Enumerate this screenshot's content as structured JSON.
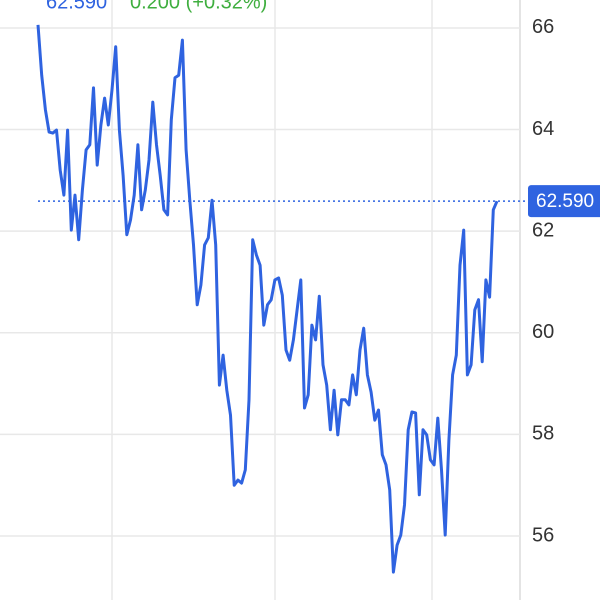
{
  "chart_data": {
    "type": "line",
    "price": "62.590",
    "change": "0.200 (+0.32%)",
    "color": "#2f63e0",
    "ylim": [
      54.74,
      66.55
    ],
    "yticks": [
      56,
      58,
      60,
      62,
      64,
      66
    ],
    "grid": true,
    "price_line": {
      "value": 62.59,
      "label": "62.590"
    },
    "values": [
      66.06,
      65.07,
      64.39,
      63.95,
      63.93,
      63.99,
      63.2,
      62.71,
      63.99,
      62.02,
      62.71,
      61.83,
      62.81,
      63.6,
      63.7,
      64.82,
      63.3,
      64.09,
      64.62,
      64.09,
      64.78,
      65.63,
      63.99,
      63.1,
      61.93,
      62.22,
      62.71,
      63.7,
      62.42,
      62.81,
      63.4,
      64.54,
      63.7,
      63.1,
      62.42,
      62.32,
      64.19,
      65.02,
      65.07,
      65.76,
      63.6,
      62.61,
      61.73,
      60.55,
      60.94,
      61.73,
      61.87,
      62.61,
      61.73,
      58.97,
      59.56,
      58.87,
      58.38,
      57.0,
      57.1,
      57.04,
      57.3,
      58.68,
      61.83,
      61.53,
      61.33,
      60.15,
      60.55,
      60.65,
      61.04,
      61.08,
      60.74,
      59.66,
      59.46,
      59.86,
      60.45,
      61.04,
      58.52,
      58.78,
      60.15,
      59.86,
      60.72,
      59.37,
      58.97,
      58.09,
      58.87,
      57.99,
      58.68,
      58.68,
      58.58,
      59.17,
      58.78,
      59.66,
      60.09,
      59.17,
      58.83,
      58.28,
      58.48,
      57.6,
      57.4,
      56.91,
      55.29,
      55.82,
      56.02,
      56.61,
      58.09,
      58.44,
      58.42,
      56.81,
      58.09,
      57.99,
      57.5,
      57.4,
      58.32,
      57.3,
      56.02,
      57.89,
      59.17,
      59.56,
      61.33,
      62.02,
      59.17,
      59.37,
      60.45,
      60.65,
      59.43,
      61.04,
      60.7,
      62.42,
      62.59
    ]
  }
}
